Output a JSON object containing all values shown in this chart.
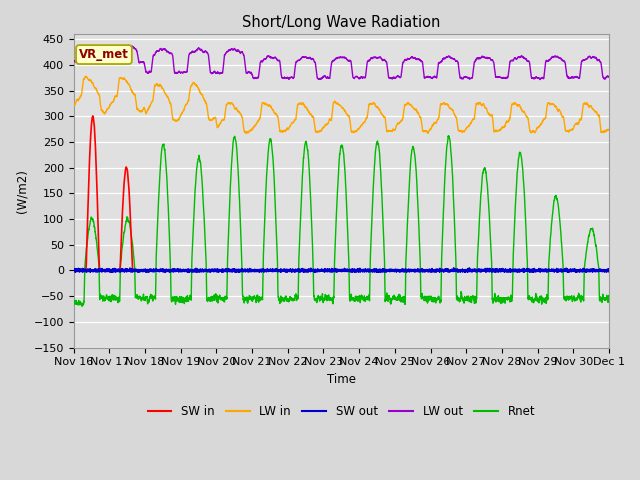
{
  "title": "Short/Long Wave Radiation",
  "ylabel": "(W/m2)",
  "xlabel": "Time",
  "ylim": [
    -150,
    460
  ],
  "background_color": "#d8d8d8",
  "plot_bg_color": "#e0e0e0",
  "annotation_text": "VR_met",
  "annotation_color": "#8B0000",
  "annotation_bg": "#ffffcc",
  "annotation_edge": "#aaa800",
  "grid_color": "#ffffff",
  "colors": {
    "SW_in": "#ff0000",
    "LW_in": "#ffa500",
    "SW_out": "#0000cd",
    "LW_out": "#9900cc",
    "Rnet": "#00bb00"
  },
  "legend_labels": [
    "SW in",
    "LW in",
    "SW out",
    "LW out",
    "Rnet"
  ],
  "x_tick_labels": [
    "Nov 16",
    "Nov 17",
    "Nov 18",
    "Nov 19",
    "Nov 20",
    "Nov 21",
    "Nov 22",
    "Nov 23",
    "Nov 24",
    "Nov 25",
    "Nov 26",
    "Nov 27",
    "Nov 28",
    "Nov 29",
    "Nov 30",
    "Dec 1"
  ],
  "n_points": 4320
}
